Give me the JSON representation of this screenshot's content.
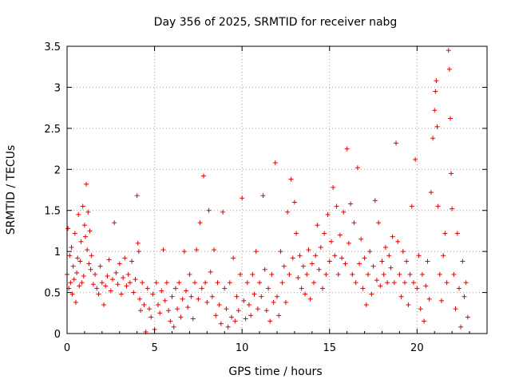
{
  "chart_data": {
    "type": "scatter",
    "title": "Day 356 of 2025, SRMTID for receiver nabg",
    "xlabel": "GPS time / hours",
    "ylabel": "SRMTID / TECUs",
    "xlim": [
      0,
      24
    ],
    "ylim": [
      0,
      3.5
    ],
    "xticks": [
      0,
      5,
      10,
      15,
      20
    ],
    "yticks": [
      0,
      0.5,
      1,
      1.5,
      2,
      2.5,
      3,
      3.5
    ],
    "xtick_labels": [
      "0",
      "5",
      "10",
      "15",
      "20"
    ],
    "ytick_labels": [
      "0",
      "0.5",
      "1",
      "1.5",
      "2",
      "2.5",
      "3",
      "3.5"
    ],
    "grid": true,
    "marker": "+",
    "color": "#e00000",
    "series": [
      {
        "name": "SRMTID",
        "points": [
          [
            0.0,
            0.72
          ],
          [
            0.05,
            1.28
          ],
          [
            0.1,
            0.55
          ],
          [
            0.15,
            0.95
          ],
          [
            0.2,
            0.62
          ],
          [
            0.25,
            1.05
          ],
          [
            0.3,
            0.48
          ],
          [
            0.35,
            0.82
          ],
          [
            0.4,
            0.66
          ],
          [
            0.45,
            1.22
          ],
          [
            0.5,
            0.38
          ],
          [
            0.55,
            0.74
          ],
          [
            0.6,
            0.92
          ],
          [
            0.65,
            1.45
          ],
          [
            0.7,
            0.58
          ],
          [
            0.75,
            0.88
          ],
          [
            0.8,
            1.12
          ],
          [
            0.85,
            0.62
          ],
          [
            0.9,
            1.55
          ],
          [
            0.95,
            0.7
          ],
          [
            1.0,
            1.32
          ],
          [
            1.05,
            1.18
          ],
          [
            1.1,
            1.82
          ],
          [
            1.15,
            1.02
          ],
          [
            1.2,
            1.48
          ],
          [
            1.25,
            0.85
          ],
          [
            1.3,
            1.25
          ],
          [
            1.35,
            0.78
          ],
          [
            1.4,
            0.95
          ],
          [
            1.5,
            0.6
          ],
          [
            1.6,
            0.72
          ],
          [
            1.7,
            0.55
          ],
          [
            1.8,
            0.48
          ],
          [
            1.9,
            0.82
          ],
          [
            2.0,
            0.62
          ],
          [
            2.1,
            0.35
          ],
          [
            2.2,
            0.58
          ],
          [
            2.3,
            0.7
          ],
          [
            2.4,
            0.9
          ],
          [
            2.5,
            0.52
          ],
          [
            2.6,
            0.66
          ],
          [
            2.7,
            1.35
          ],
          [
            2.8,
            0.74
          ],
          [
            2.9,
            0.6
          ],
          [
            3.0,
            0.85
          ],
          [
            3.1,
            0.48
          ],
          [
            3.2,
            0.68
          ],
          [
            3.3,
            0.92
          ],
          [
            3.4,
            0.58
          ],
          [
            3.5,
            0.72
          ],
          [
            3.6,
            0.62
          ],
          [
            3.7,
            0.88
          ],
          [
            3.8,
            0.5
          ],
          [
            3.9,
            0.66
          ],
          [
            4.0,
            1.68
          ],
          [
            4.05,
            1.1
          ],
          [
            4.1,
            1.0
          ],
          [
            4.15,
            0.42
          ],
          [
            4.2,
            0.28
          ],
          [
            4.3,
            0.62
          ],
          [
            4.4,
            0.35
          ],
          [
            4.5,
            0.02
          ],
          [
            4.6,
            0.55
          ],
          [
            4.7,
            0.3
          ],
          [
            4.8,
            0.2
          ],
          [
            4.9,
            0.48
          ],
          [
            5.0,
            0.05
          ],
          [
            5.1,
            0.62
          ],
          [
            5.2,
            0.35
          ],
          [
            5.3,
            0.25
          ],
          [
            5.4,
            0.52
          ],
          [
            5.5,
            1.02
          ],
          [
            5.6,
            0.4
          ],
          [
            5.7,
            0.62
          ],
          [
            5.8,
            0.28
          ],
          [
            5.9,
            0.15
          ],
          [
            6.0,
            0.45
          ],
          [
            6.1,
            0.08
          ],
          [
            6.2,
            0.55
          ],
          [
            6.3,
            0.3
          ],
          [
            6.4,
            0.62
          ],
          [
            6.5,
            0.2
          ],
          [
            6.6,
            0.42
          ],
          [
            6.7,
            1.0
          ],
          [
            6.8,
            0.52
          ],
          [
            6.9,
            0.32
          ],
          [
            7.0,
            0.72
          ],
          [
            7.1,
            0.45
          ],
          [
            7.2,
            0.18
          ],
          [
            7.3,
            0.62
          ],
          [
            7.4,
            1.02
          ],
          [
            7.5,
            0.42
          ],
          [
            7.6,
            1.35
          ],
          [
            7.7,
            0.55
          ],
          [
            7.8,
            1.92
          ],
          [
            7.9,
            0.62
          ],
          [
            8.0,
            0.38
          ],
          [
            8.1,
            1.5
          ],
          [
            8.2,
            0.75
          ],
          [
            8.3,
            0.45
          ],
          [
            8.4,
            1.02
          ],
          [
            8.5,
            0.22
          ],
          [
            8.6,
            0.62
          ],
          [
            8.7,
            0.35
          ],
          [
            8.8,
            0.12
          ],
          [
            8.9,
            1.48
          ],
          [
            9.0,
            0.55
          ],
          [
            9.1,
            0.3
          ],
          [
            9.2,
            0.08
          ],
          [
            9.3,
            0.62
          ],
          [
            9.4,
            0.2
          ],
          [
            9.5,
            0.92
          ],
          [
            9.6,
            0.15
          ],
          [
            9.7,
            0.45
          ],
          [
            9.8,
            0.28
          ],
          [
            9.9,
            0.72
          ],
          [
            10.0,
            1.65
          ],
          [
            10.1,
            0.4
          ],
          [
            10.2,
            0.18
          ],
          [
            10.3,
            0.62
          ],
          [
            10.4,
            0.35
          ],
          [
            10.5,
            0.22
          ],
          [
            10.6,
            0.72
          ],
          [
            10.7,
            0.48
          ],
          [
            10.8,
            1.0
          ],
          [
            10.9,
            0.3
          ],
          [
            11.0,
            0.62
          ],
          [
            11.1,
            0.45
          ],
          [
            11.2,
            1.68
          ],
          [
            11.3,
            0.78
          ],
          [
            11.4,
            0.28
          ],
          [
            11.5,
            0.55
          ],
          [
            11.6,
            0.15
          ],
          [
            11.7,
            0.72
          ],
          [
            11.8,
            0.38
          ],
          [
            11.9,
            2.08
          ],
          [
            12.0,
            0.45
          ],
          [
            12.1,
            0.22
          ],
          [
            12.2,
            1.0
          ],
          [
            12.3,
            0.62
          ],
          [
            12.4,
            0.82
          ],
          [
            12.5,
            0.38
          ],
          [
            12.6,
            1.48
          ],
          [
            12.7,
            0.72
          ],
          [
            12.8,
            1.88
          ],
          [
            12.9,
            0.92
          ],
          [
            13.0,
            1.6
          ],
          [
            13.1,
            1.22
          ],
          [
            13.2,
            0.68
          ],
          [
            13.3,
            0.95
          ],
          [
            13.4,
            0.55
          ],
          [
            13.5,
            0.82
          ],
          [
            13.6,
            0.48
          ],
          [
            13.7,
            0.72
          ],
          [
            13.8,
            1.02
          ],
          [
            13.9,
            0.42
          ],
          [
            14.0,
            0.85
          ],
          [
            14.1,
            0.62
          ],
          [
            14.2,
            0.95
          ],
          [
            14.3,
            1.32
          ],
          [
            14.4,
            0.78
          ],
          [
            14.5,
            1.05
          ],
          [
            14.6,
            0.55
          ],
          [
            14.7,
            1.22
          ],
          [
            14.8,
            0.72
          ],
          [
            14.9,
            1.45
          ],
          [
            15.0,
            0.88
          ],
          [
            15.1,
            1.12
          ],
          [
            15.2,
            1.78
          ],
          [
            15.3,
            0.95
          ],
          [
            15.4,
            1.55
          ],
          [
            15.5,
            0.72
          ],
          [
            15.6,
            1.2
          ],
          [
            15.7,
            0.92
          ],
          [
            15.8,
            1.48
          ],
          [
            15.9,
            0.85
          ],
          [
            16.0,
            2.25
          ],
          [
            16.1,
            1.1
          ],
          [
            16.2,
            1.58
          ],
          [
            16.3,
            0.72
          ],
          [
            16.4,
            1.35
          ],
          [
            16.5,
            0.62
          ],
          [
            16.6,
            2.02
          ],
          [
            16.7,
            0.85
          ],
          [
            16.8,
            1.15
          ],
          [
            16.9,
            0.55
          ],
          [
            17.0,
            0.92
          ],
          [
            17.1,
            0.35
          ],
          [
            17.2,
            0.72
          ],
          [
            17.3,
            1.0
          ],
          [
            17.4,
            0.48
          ],
          [
            17.5,
            0.82
          ],
          [
            17.6,
            1.62
          ],
          [
            17.7,
            0.65
          ],
          [
            17.8,
            1.35
          ],
          [
            17.9,
            0.58
          ],
          [
            18.0,
            0.88
          ],
          [
            18.1,
            0.72
          ],
          [
            18.2,
            1.05
          ],
          [
            18.3,
            0.62
          ],
          [
            18.4,
            0.95
          ],
          [
            18.5,
            0.8
          ],
          [
            18.6,
            1.18
          ],
          [
            18.7,
            0.62
          ],
          [
            18.8,
            2.32
          ],
          [
            18.9,
            1.12
          ],
          [
            19.0,
            0.72
          ],
          [
            19.1,
            0.45
          ],
          [
            19.2,
            1.0
          ],
          [
            19.3,
            0.62
          ],
          [
            19.4,
            0.88
          ],
          [
            19.5,
            0.35
          ],
          [
            19.6,
            0.72
          ],
          [
            19.7,
            1.55
          ],
          [
            19.8,
            0.62
          ],
          [
            19.9,
            2.12
          ],
          [
            20.0,
            0.55
          ],
          [
            20.1,
            0.95
          ],
          [
            20.2,
            0.3
          ],
          [
            20.3,
            0.72
          ],
          [
            20.4,
            0.15
          ],
          [
            20.5,
            0.58
          ],
          [
            20.6,
            0.88
          ],
          [
            20.7,
            0.42
          ],
          [
            20.8,
            1.72
          ],
          [
            20.9,
            2.38
          ],
          [
            21.0,
            2.72
          ],
          [
            21.05,
            2.95
          ],
          [
            21.1,
            3.08
          ],
          [
            21.15,
            2.52
          ],
          [
            21.2,
            1.55
          ],
          [
            21.3,
            0.72
          ],
          [
            21.4,
            0.4
          ],
          [
            21.5,
            0.95
          ],
          [
            21.6,
            1.22
          ],
          [
            21.7,
            0.62
          ],
          [
            21.8,
            3.45
          ],
          [
            21.85,
            3.22
          ],
          [
            21.9,
            2.62
          ],
          [
            21.95,
            1.95
          ],
          [
            22.0,
            1.52
          ],
          [
            22.1,
            0.72
          ],
          [
            22.2,
            0.3
          ],
          [
            22.3,
            1.22
          ],
          [
            22.4,
            0.55
          ],
          [
            22.5,
            0.08
          ],
          [
            22.6,
            0.88
          ],
          [
            22.7,
            0.45
          ],
          [
            22.8,
            0.62
          ],
          [
            22.9,
            0.2
          ]
        ]
      }
    ]
  }
}
